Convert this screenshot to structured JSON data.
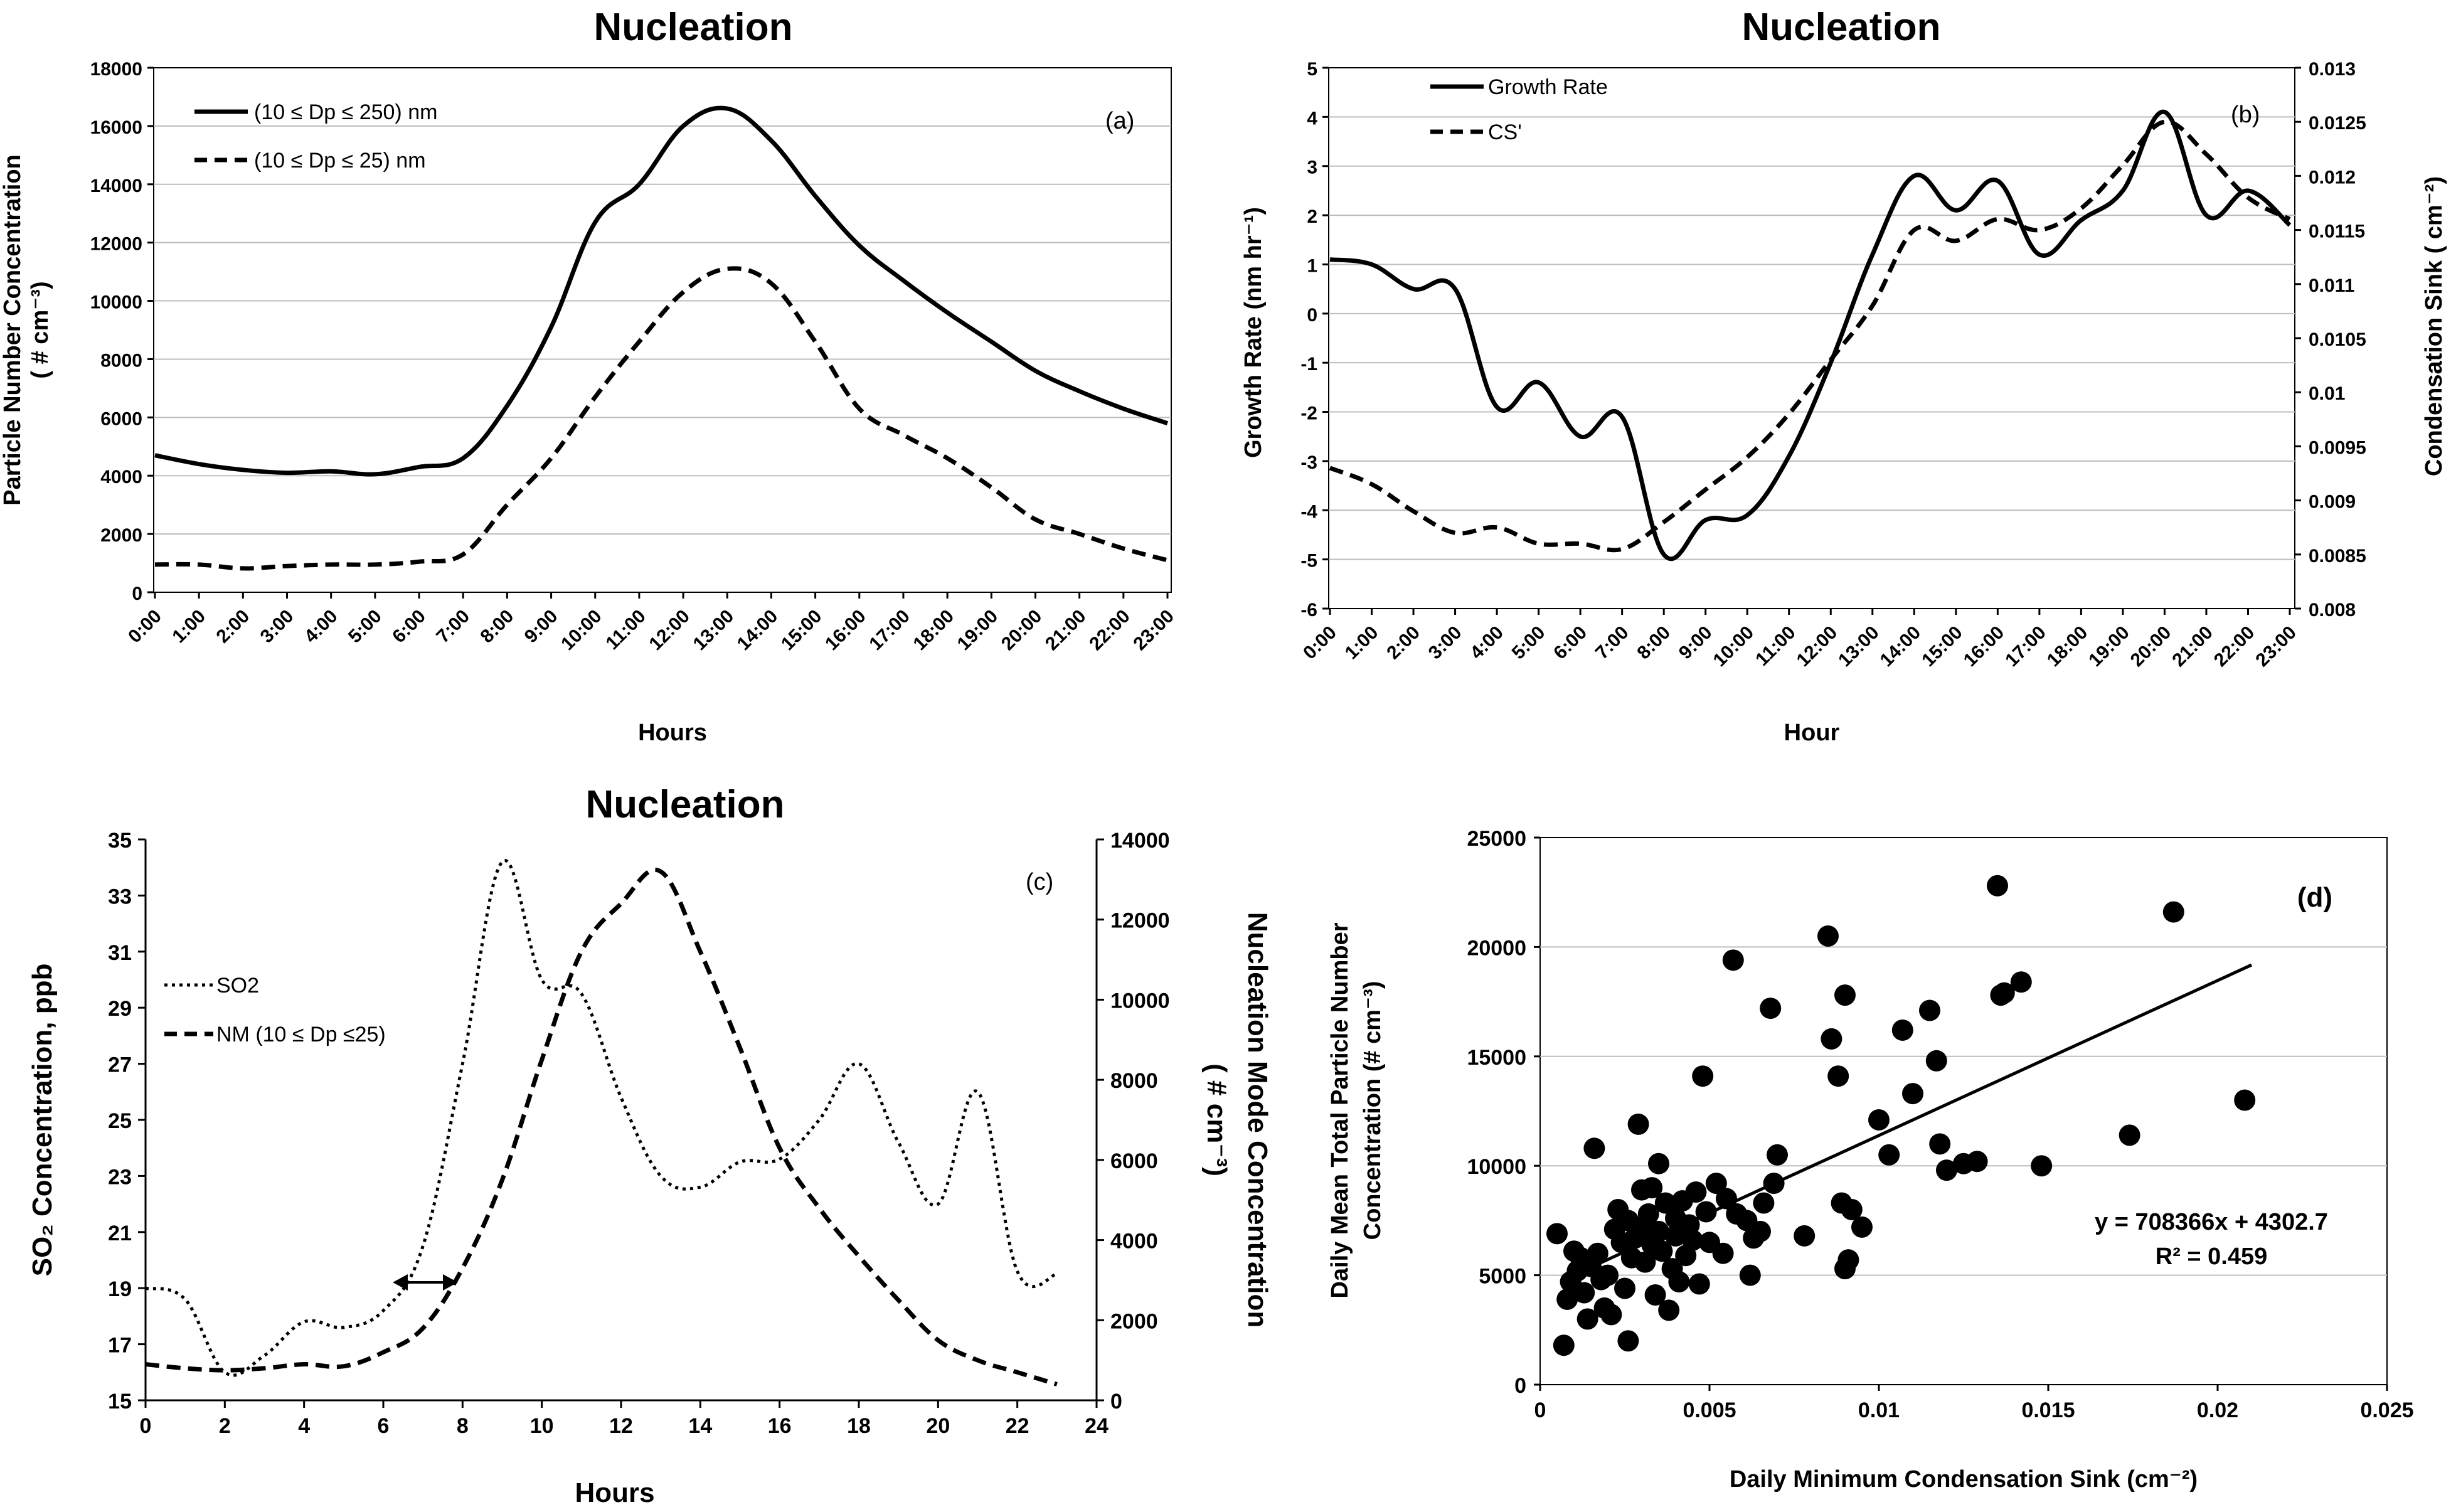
{
  "chart_data": [
    {
      "panel": "(a)",
      "type": "line",
      "title": "Nucleation",
      "xlabel": "Hours",
      "ylabel": "Particle Number Concentration",
      "ylabel_unit": "( # cm⁻³)",
      "ylim": [
        0,
        18000
      ],
      "yticks": [
        0,
        2000,
        4000,
        6000,
        8000,
        10000,
        12000,
        14000,
        16000,
        18000
      ],
      "ytick_labels": [
        "0",
        "2000",
        "4000",
        "6000",
        "8000",
        "10000",
        "12000",
        "14000",
        "16000",
        "18000"
      ],
      "categories": [
        "0:00",
        "1:00",
        "2:00",
        "3:00",
        "4:00",
        "5:00",
        "6:00",
        "7:00",
        "8:00",
        "9:00",
        "10:00",
        "11:00",
        "12:00",
        "13:00",
        "14:00",
        "15:00",
        "16:00",
        "17:00",
        "18:00",
        "19:00",
        "20:00",
        "21:00",
        "22:00",
        "23:00"
      ],
      "series": [
        {
          "name": "(10 ≤ Dp ≤ 250) nm",
          "style": "solid",
          "values": [
            4700,
            4400,
            4200,
            4100,
            4150,
            4050,
            4300,
            4600,
            6400,
            9100,
            12700,
            14000,
            16000,
            16600,
            15500,
            13600,
            11900,
            10700,
            9600,
            8600,
            7600,
            6900,
            6300,
            5800
          ]
        },
        {
          "name": "(10 ≤ Dp ≤ 25) nm",
          "style": "dashed",
          "values": [
            950,
            950,
            820,
            900,
            950,
            950,
            1050,
            1300,
            3000,
            4600,
            6700,
            8600,
            10300,
            11100,
            10600,
            8600,
            6300,
            5400,
            4600,
            3600,
            2500,
            2000,
            1500,
            1100
          ]
        }
      ]
    },
    {
      "panel": "(b)",
      "type": "line",
      "title": "Nucleation",
      "xlabel": "Hour",
      "ylabel": "Growth Rate  (nm hr⁻¹)",
      "ylabel_right": "Condensation Sink ( cm⁻²)",
      "ylim": [
        -6,
        5
      ],
      "yticks": [
        -6,
        -5,
        -4,
        -3,
        -2,
        -1,
        0,
        1,
        2,
        3,
        4,
        5
      ],
      "ytick_labels": [
        "-6",
        "-5",
        "-4",
        "-3",
        "-2",
        "-1",
        "0",
        "1",
        "2",
        "3",
        "4",
        "5"
      ],
      "ylim_right": [
        0.008,
        0.013
      ],
      "yticks_right": [
        0.008,
        0.0085,
        0.009,
        0.0095,
        0.01,
        0.0105,
        0.011,
        0.0115,
        0.012,
        0.0125,
        0.013
      ],
      "ytick_labels_right": [
        "0.008",
        "0.0085",
        "0.009",
        "0.0095",
        "0.01",
        "0.0105",
        "0.011",
        "0.0115",
        "0.012",
        "0.0125",
        "0.013"
      ],
      "categories": [
        "0:00",
        "1:00",
        "2:00",
        "3:00",
        "4:00",
        "5:00",
        "6:00",
        "7:00",
        "8:00",
        "9:00",
        "10:00",
        "11:00",
        "12:00",
        "13:00",
        "14:00",
        "15:00",
        "16:00",
        "17:00",
        "18:00",
        "19:00",
        "20:00",
        "21:00",
        "22:00",
        "23:00"
      ],
      "series": [
        {
          "name": "Growth Rate",
          "style": "solid",
          "axis": "left",
          "values": [
            1.1,
            1.0,
            0.5,
            0.5,
            -1.9,
            -1.4,
            -2.5,
            -2.1,
            -4.9,
            -4.2,
            -4.1,
            -2.9,
            -1.0,
            1.2,
            2.8,
            2.1,
            2.7,
            1.2,
            1.9,
            2.5,
            4.1,
            2.0,
            2.5,
            1.8
          ]
        },
        {
          "name": "CS'",
          "style": "dashed",
          "axis": "right",
          "values": [
            0.0093,
            0.00915,
            0.0089,
            0.0087,
            0.00875,
            0.0086,
            0.0086,
            0.00855,
            0.0088,
            0.0091,
            0.0094,
            0.0098,
            0.0103,
            0.0108,
            0.0115,
            0.0114,
            0.0116,
            0.0115,
            0.0117,
            0.0121,
            0.0125,
            0.0122,
            0.0118,
            0.0116
          ]
        }
      ]
    },
    {
      "panel": "(c)",
      "type": "line",
      "title": "Nucleation",
      "xlabel": "Hours",
      "ylabel": "SO₂ Concentration, ppb",
      "ylabel_right": "Nucleation Mode  Concentration",
      "ylabel_right_unit": "( # cm⁻³)",
      "xlim": [
        0,
        24
      ],
      "xticks": [
        0,
        2,
        4,
        6,
        8,
        10,
        12,
        14,
        16,
        18,
        20,
        22,
        24
      ],
      "xtick_labels": [
        "0",
        "2",
        "4",
        "6",
        "8",
        "10",
        "12",
        "14",
        "16",
        "18",
        "20",
        "22",
        "24"
      ],
      "ylim": [
        15,
        35
      ],
      "yticks": [
        15,
        17,
        19,
        21,
        23,
        25,
        27,
        29,
        31,
        33,
        35
      ],
      "ytick_labels": [
        "15",
        "17",
        "19",
        "21",
        "23",
        "25",
        "27",
        "29",
        "31",
        "33",
        "35"
      ],
      "ylim_right": [
        0,
        14000
      ],
      "yticks_right": [
        0,
        2000,
        4000,
        6000,
        8000,
        10000,
        12000,
        14000
      ],
      "ytick_labels_right": [
        "0",
        "2000",
        "4000",
        "6000",
        "8000",
        "10000",
        "12000",
        "14000"
      ],
      "series": [
        {
          "name": "SO2",
          "style": "dotted",
          "axis": "left",
          "x": [
            0,
            1,
            2,
            3,
            4,
            5,
            6,
            7,
            8,
            9,
            10,
            11,
            12,
            13,
            14,
            15,
            16,
            17,
            18,
            19,
            20,
            21,
            22,
            23
          ],
          "values": [
            19.0,
            18.6,
            16.0,
            16.6,
            17.8,
            17.6,
            18.2,
            20.5,
            27.0,
            34.2,
            30.0,
            29.5,
            25.8,
            23.0,
            22.6,
            23.5,
            23.6,
            25.0,
            27.0,
            24.2,
            22.0,
            26.0,
            19.6,
            19.5
          ]
        },
        {
          "name": "NM (10 ≤ Dp ≤25)",
          "style": "dashed",
          "axis": "right",
          "x": [
            0,
            1,
            2,
            3,
            4,
            5,
            6,
            7,
            8,
            9,
            10,
            11,
            12,
            13,
            14,
            15,
            16,
            17,
            18,
            19,
            20,
            21,
            22,
            23
          ],
          "values": [
            900,
            800,
            750,
            800,
            900,
            850,
            1200,
            1800,
            3300,
            5500,
            8500,
            11200,
            12400,
            13200,
            11200,
            8800,
            6300,
            4800,
            3600,
            2500,
            1500,
            1000,
            700,
            400
          ]
        }
      ],
      "annotations": [
        {
          "text": "↔",
          "at_x": 7.2,
          "at_y": 19
        }
      ]
    },
    {
      "panel": "(d)",
      "type": "scatter",
      "xlabel": "Daily Minimum Condensation Sink (cm⁻²)",
      "ylabel": "Daily Mean Total Particle Number",
      "ylabel_line2": "Concentration (# cm⁻³)",
      "xlim": [
        0,
        0.025
      ],
      "xticks": [
        0,
        0.005,
        0.01,
        0.015,
        0.02,
        0.025
      ],
      "xtick_labels": [
        "0",
        "0.005",
        "0.01",
        "0.015",
        "0.02",
        "0.025"
      ],
      "ylim": [
        0,
        25000
      ],
      "yticks": [
        0,
        5000,
        10000,
        15000,
        20000,
        25000
      ],
      "ytick_labels": [
        "0",
        "5000",
        "10000",
        "15000",
        "20000",
        "25000"
      ],
      "equation": "y = 708366x + 4302.7",
      "r_squared": "R² = 0.459",
      "trendline": {
        "slope": 708366,
        "intercept": 4302.7,
        "x_range": [
          0.0006,
          0.021
        ]
      },
      "points": [
        [
          0.0005,
          6900
        ],
        [
          0.0007,
          1800
        ],
        [
          0.0008,
          3900
        ],
        [
          0.0009,
          4700
        ],
        [
          0.001,
          6100
        ],
        [
          0.0011,
          5200
        ],
        [
          0.0012,
          5800
        ],
        [
          0.0013,
          4200
        ],
        [
          0.0014,
          3000
        ],
        [
          0.0015,
          5400
        ],
        [
          0.0016,
          10800
        ],
        [
          0.0017,
          6000
        ],
        [
          0.0018,
          4800
        ],
        [
          0.0019,
          3500
        ],
        [
          0.002,
          5000
        ],
        [
          0.0021,
          3200
        ],
        [
          0.0022,
          7100
        ],
        [
          0.0023,
          8000
        ],
        [
          0.0024,
          6500
        ],
        [
          0.0025,
          4400
        ],
        [
          0.0026,
          2000
        ],
        [
          0.0026,
          7500
        ],
        [
          0.0027,
          5800
        ],
        [
          0.0028,
          6700
        ],
        [
          0.0029,
          11900
        ],
        [
          0.003,
          7200
        ],
        [
          0.003,
          8900
        ],
        [
          0.0031,
          5600
        ],
        [
          0.0032,
          7800
        ],
        [
          0.0033,
          6400
        ],
        [
          0.0033,
          9000
        ],
        [
          0.0034,
          4100
        ],
        [
          0.0035,
          10100
        ],
        [
          0.0035,
          7000
        ],
        [
          0.0036,
          6100
        ],
        [
          0.0037,
          8300
        ],
        [
          0.0038,
          3400
        ],
        [
          0.0039,
          5300
        ],
        [
          0.004,
          7600
        ],
        [
          0.004,
          6800
        ],
        [
          0.0041,
          4700
        ],
        [
          0.0042,
          8400
        ],
        [
          0.0043,
          5900
        ],
        [
          0.0044,
          7300
        ],
        [
          0.0045,
          6600
        ],
        [
          0.0046,
          8800
        ],
        [
          0.0047,
          4600
        ],
        [
          0.0048,
          14100
        ],
        [
          0.0049,
          7900
        ],
        [
          0.005,
          6500
        ],
        [
          0.0052,
          9200
        ],
        [
          0.0054,
          6000
        ],
        [
          0.0055,
          8500
        ],
        [
          0.0057,
          19400
        ],
        [
          0.0058,
          7800
        ],
        [
          0.0061,
          7500
        ],
        [
          0.0062,
          5000
        ],
        [
          0.0063,
          6700
        ],
        [
          0.0065,
          7000
        ],
        [
          0.0066,
          8300
        ],
        [
          0.0068,
          17200
        ],
        [
          0.0069,
          9200
        ],
        [
          0.007,
          10500
        ],
        [
          0.0078,
          6800
        ],
        [
          0.0085,
          20500
        ],
        [
          0.0086,
          15800
        ],
        [
          0.0088,
          14100
        ],
        [
          0.0089,
          8300
        ],
        [
          0.009,
          5300
        ],
        [
          0.009,
          17800
        ],
        [
          0.0091,
          5700
        ],
        [
          0.0092,
          8000
        ],
        [
          0.0095,
          7200
        ],
        [
          0.01,
          12100
        ],
        [
          0.0103,
          10500
        ],
        [
          0.0107,
          16200
        ],
        [
          0.011,
          13300
        ],
        [
          0.0115,
          17100
        ],
        [
          0.0117,
          14800
        ],
        [
          0.0118,
          11000
        ],
        [
          0.012,
          9800
        ],
        [
          0.0125,
          10100
        ],
        [
          0.0129,
          10200
        ],
        [
          0.0135,
          22800
        ],
        [
          0.0136,
          17800
        ],
        [
          0.0137,
          17900
        ],
        [
          0.0142,
          18400
        ],
        [
          0.0148,
          10000
        ],
        [
          0.0174,
          11400
        ],
        [
          0.0187,
          21600
        ],
        [
          0.0208,
          13000
        ]
      ]
    }
  ]
}
